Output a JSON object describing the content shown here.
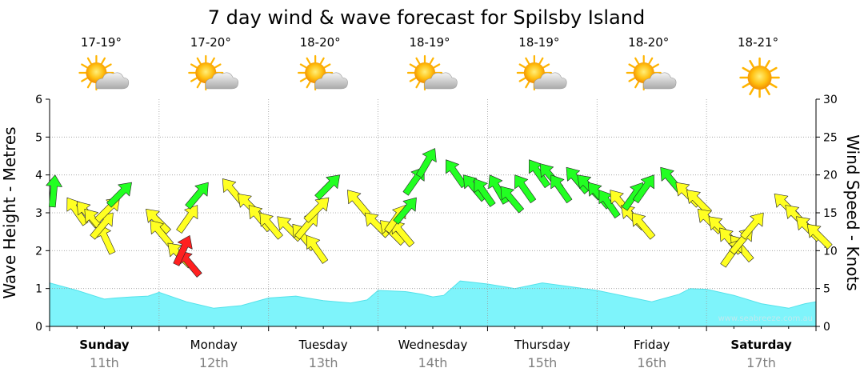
{
  "title": "7 day wind & wave forecast for Spilsby Island",
  "watermark": "www.seabreeze.com.au",
  "colors": {
    "wave_fill": "#7ef4fb",
    "wave_stroke": "#54e2ea",
    "arrow_light": "#ffff22",
    "arrow_medium": "#22ff22",
    "arrow_strong": "#ff2020",
    "grid": "#9a9a9a"
  },
  "days": [
    {
      "day": "Sunday",
      "date": "11th",
      "temp": "17-19°",
      "icon": "partly-cloudy-icon",
      "bold": true
    },
    {
      "day": "Monday",
      "date": "12th",
      "temp": "17-20°",
      "icon": "partly-cloudy-icon",
      "bold": false
    },
    {
      "day": "Tuesday",
      "date": "13th",
      "temp": "18-20°",
      "icon": "partly-cloudy-icon",
      "bold": false
    },
    {
      "day": "Wednesday",
      "date": "14th",
      "temp": "18-19°",
      "icon": "partly-cloudy-icon",
      "bold": false
    },
    {
      "day": "Thursday",
      "date": "15th",
      "temp": "18-19°",
      "icon": "partly-cloudy-icon",
      "bold": false
    },
    {
      "day": "Friday",
      "date": "16th",
      "temp": "18-20°",
      "icon": "partly-cloudy-icon",
      "bold": false
    },
    {
      "day": "Saturday",
      "date": "17th",
      "temp": "18-21°",
      "icon": "sun-icon",
      "bold": true
    }
  ],
  "chart_data": {
    "type": "area",
    "x_unit": "day index (0 = start of Sunday 11th)",
    "left_axis": {
      "label": "Wave Height - Metres",
      "ylim": [
        0,
        6
      ],
      "ticks": [
        "0",
        "1",
        "2",
        "3",
        "4",
        "5",
        "6"
      ]
    },
    "right_axis": {
      "label": "Wind Speed - Knots",
      "ylim": [
        0,
        30
      ],
      "ticks": [
        "0",
        "5",
        "10",
        "15",
        "20",
        "25",
        "30"
      ]
    },
    "grid": true,
    "wave_height": {
      "x": [
        0,
        0.25,
        0.5,
        0.6,
        0.75,
        0.9,
        1.0,
        1.25,
        1.5,
        1.75,
        2.0,
        2.25,
        2.5,
        2.75,
        2.9,
        3.0,
        3.25,
        3.4,
        3.5,
        3.6,
        3.75,
        4.0,
        4.25,
        4.5,
        4.75,
        5.0,
        5.25,
        5.5,
        5.75,
        5.85,
        6.0,
        6.25,
        6.5,
        6.75,
        6.9,
        7.0
      ],
      "values": [
        1.15,
        0.95,
        0.72,
        0.75,
        0.78,
        0.8,
        0.9,
        0.65,
        0.48,
        0.55,
        0.75,
        0.8,
        0.68,
        0.62,
        0.7,
        0.95,
        0.92,
        0.85,
        0.78,
        0.82,
        1.2,
        1.12,
        1.0,
        1.15,
        1.05,
        0.95,
        0.8,
        0.65,
        0.85,
        1.0,
        0.98,
        0.82,
        0.6,
        0.48,
        0.6,
        0.65
      ]
    },
    "wind_arrows": {
      "note": "arrow tip at wind speed (knots), rotated to direction (degrees, 0 = pointing up)",
      "x": [
        0.05,
        0.16,
        0.25,
        0.32,
        0.45,
        0.58,
        0.64,
        0.75,
        0.88,
        0.92,
        1.08,
        1.18,
        1.28,
        1.35,
        1.45,
        1.58,
        1.72,
        1.82,
        1.92,
        2.08,
        2.22,
        2.35,
        2.45,
        2.55,
        2.65,
        2.72,
        2.88,
        3.02,
        3.12,
        3.25,
        3.35,
        3.42,
        3.52,
        3.62,
        3.78,
        3.88,
        4.02,
        4.12,
        4.25,
        4.38,
        4.48,
        4.58,
        4.72,
        4.82,
        4.92,
        5.02,
        5.12,
        5.22,
        5.32,
        5.42,
        5.52,
        5.58,
        5.72,
        5.82,
        5.92,
        6.02,
        6.12,
        6.22,
        6.32,
        6.42,
        6.52,
        6.62,
        6.72,
        6.82,
        6.92
      ],
      "speed": [
        20,
        17,
        16.5,
        15.5,
        13.5,
        15,
        17,
        19,
        15.5,
        14,
        11,
        10,
        12,
        16,
        19,
        19.5,
        17.5,
        16,
        15,
        14.5,
        13.5,
        12,
        15,
        17,
        20,
        18,
        15,
        14,
        14,
        16,
        17,
        21,
        23.5,
        22,
        20,
        19.5,
        20,
        18.5,
        20,
        22,
        21.5,
        20,
        21,
        20,
        19,
        18,
        18,
        16,
        15,
        19,
        20,
        21,
        19,
        18,
        15.5,
        14.5,
        13,
        12,
        11.5,
        13,
        15,
        17.5,
        16,
        14.5,
        13.5
      ],
      "angle": [
        5,
        -35,
        -40,
        -40,
        -25,
        40,
        45,
        45,
        -45,
        -40,
        -45,
        -40,
        25,
        35,
        40,
        -40,
        -45,
        -40,
        -40,
        -45,
        -40,
        -35,
        40,
        45,
        45,
        -40,
        -45,
        -45,
        -40,
        35,
        40,
        35,
        30,
        -35,
        -40,
        -35,
        -30,
        -40,
        -35,
        -35,
        -40,
        -35,
        -40,
        -45,
        -40,
        -35,
        -40,
        -45,
        -40,
        35,
        35,
        -40,
        -45,
        -45,
        -45,
        -45,
        -40,
        -40,
        35,
        40,
        40,
        -45,
        -45,
        -45,
        -45
      ],
      "level": [
        "medium",
        "light",
        "light",
        "light",
        "light",
        "light",
        "light",
        "medium",
        "light",
        "light",
        "light",
        "strong",
        "strong",
        "light",
        "medium",
        "light",
        "light",
        "light",
        "light",
        "light",
        "light",
        "light",
        "light",
        "light",
        "medium",
        "light",
        "light",
        "light",
        "light",
        "light",
        "medium",
        "medium",
        "medium",
        "medium",
        "medium",
        "medium",
        "medium",
        "medium",
        "medium",
        "medium",
        "medium",
        "medium",
        "medium",
        "medium",
        "medium",
        "medium",
        "light",
        "light",
        "light",
        "medium",
        "medium",
        "medium",
        "light",
        "light",
        "light",
        "light",
        "light",
        "light",
        "light",
        "light",
        "light",
        "light",
        "light",
        "light",
        "light"
      ]
    }
  }
}
